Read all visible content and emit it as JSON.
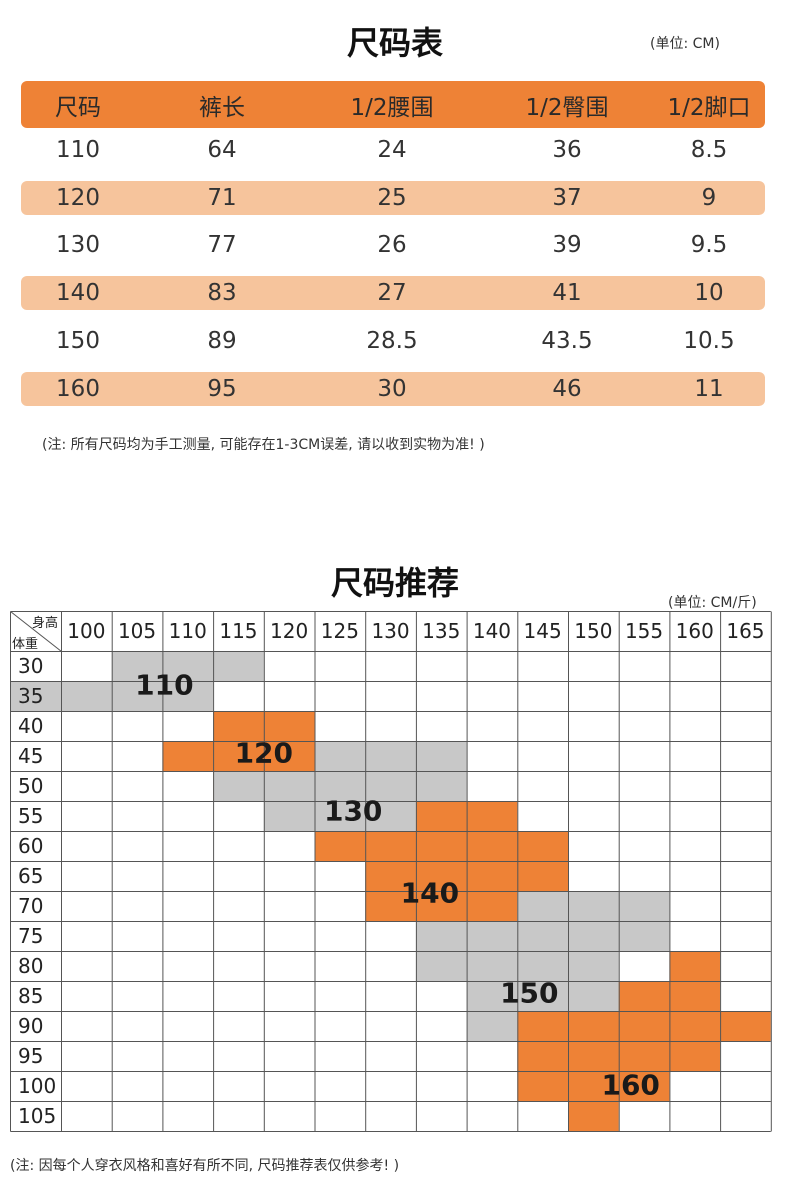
{
  "size_chart": {
    "title": "尺码表",
    "unit": "(单位: CM)",
    "columns": [
      "尺码",
      "裤长",
      "1/2腰围",
      "1/2臀围",
      "1/2脚口"
    ],
    "rows": [
      [
        "110",
        "64",
        "24",
        "36",
        "8.5"
      ],
      [
        "120",
        "71",
        "25",
        "37",
        "9"
      ],
      [
        "130",
        "77",
        "26",
        "39",
        "9.5"
      ],
      [
        "140",
        "83",
        "27",
        "41",
        "10"
      ],
      [
        "150",
        "89",
        "28.5",
        "43.5",
        "10.5"
      ],
      [
        "160",
        "95",
        "30",
        "46",
        "11"
      ]
    ],
    "note": "(注: 所有尺码均为手工测量, 可能存在1-3CM误差, 请以收到实物为准! )",
    "header_color": "#ee8236",
    "stripe_color": "#f6c49c"
  },
  "recommendation": {
    "title": "尺码推荐",
    "unit": "(单位: CM/斤)",
    "corner_height_label": "身高",
    "corner_weight_label": "体重",
    "heights": [
      "100",
      "105",
      "110",
      "115",
      "120",
      "125",
      "130",
      "135",
      "140",
      "145",
      "150",
      "155",
      "160",
      "165"
    ],
    "weights": [
      "30",
      "35",
      "40",
      "45",
      "50",
      "55",
      "60",
      "65",
      "70",
      "75",
      "80",
      "85",
      "90",
      "95",
      "100",
      "105"
    ],
    "zones": [
      {
        "size": "110",
        "color": "#c8c8c8",
        "rows": [
          [
            1,
            4
          ],
          [
            0,
            3
          ]
        ]
      },
      {
        "size": "120",
        "color": "#ee8236",
        "rows": [
          [
            3,
            5
          ],
          [
            2,
            6
          ],
          [
            3,
            5
          ]
        ]
      },
      {
        "size": "130",
        "color": "#c8c8c8",
        "rows": [
          [
            5,
            8
          ],
          [
            3,
            8
          ],
          [
            4,
            7
          ]
        ]
      },
      {
        "size": "140",
        "color": "#ee8236",
        "rows": [
          [
            7,
            9
          ],
          [
            5,
            10
          ],
          [
            6,
            10
          ],
          [
            6,
            9
          ]
        ]
      },
      {
        "size": "150",
        "color": "#c8c8c8",
        "rows": [
          [
            9,
            12
          ],
          [
            7,
            12
          ],
          [
            7,
            11
          ],
          [
            8,
            11
          ],
          [
            8,
            9
          ]
        ]
      },
      {
        "size": "160",
        "color": "#ee8236",
        "rows": [
          [
            12,
            13
          ],
          [
            11,
            13
          ],
          [
            9,
            14
          ],
          [
            9,
            13
          ],
          [
            9,
            12
          ],
          [
            10,
            11
          ]
        ]
      }
    ],
    "zone_start_rows": [
      0,
      2,
      3,
      5,
      8,
      10
    ],
    "note": "(注: 因每个人穿衣风格和喜好有所不同, 尺码推荐表仅供参考! )"
  }
}
